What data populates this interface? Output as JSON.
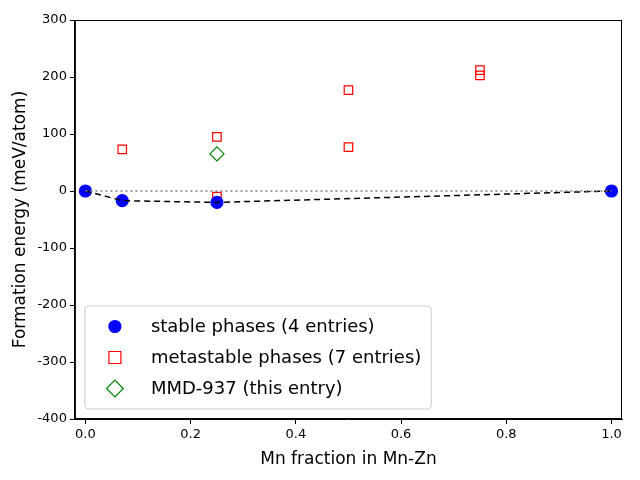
{
  "chart_data": {
    "type": "scatter",
    "x_label": "Mn fraction in Mn-Zn",
    "y_label": "Formation energy (meV/atom)",
    "xlim": [
      -0.02,
      1.02
    ],
    "xticks": [
      {
        "value": 0,
        "label": "0.0"
      },
      {
        "value": 0.2,
        "label": "0.2"
      },
      {
        "value": 0.4,
        "label": "0.4"
      },
      {
        "value": 0.6,
        "label": "0.6"
      },
      {
        "value": 0.8,
        "label": "0.8"
      },
      {
        "value": 1,
        "label": "1.0"
      }
    ],
    "ylim": [
      -400,
      300
    ],
    "yticks": [
      -400,
      -300,
      -200,
      -100,
      0,
      100,
      200,
      300
    ],
    "grid": false,
    "legend": "lower left",
    "series": [
      {
        "type": "line",
        "line_style": "dotted",
        "color": "#808080",
        "x": [
          0,
          1
        ],
        "values": [
          0,
          0
        ]
      },
      {
        "type": "line",
        "line_style": "dashed",
        "color": "#000000",
        "x": [
          0,
          0.07,
          0.25,
          1
        ],
        "values": [
          0,
          -17,
          -20,
          0
        ]
      },
      {
        "name": "stable phases (4 entries)",
        "marker": "circle",
        "color": "#0000ff",
        "x": [
          0,
          0.07,
          0.25,
          1
        ],
        "values": [
          0,
          -17,
          -20,
          0
        ]
      },
      {
        "name": "metastable phases (7 entries)",
        "marker": "open_square",
        "color": "#ff0000",
        "x": [
          0.07,
          0.25,
          0.25,
          0.5,
          0.5,
          0.75,
          0.75
        ],
        "values": [
          73,
          95,
          -10,
          177,
          77,
          212,
          203
        ]
      },
      {
        "name": "MMD-937 (this entry)",
        "marker": "open_diamond",
        "color": "#008000",
        "x": [
          0.25
        ],
        "values": [
          65
        ]
      }
    ]
  }
}
